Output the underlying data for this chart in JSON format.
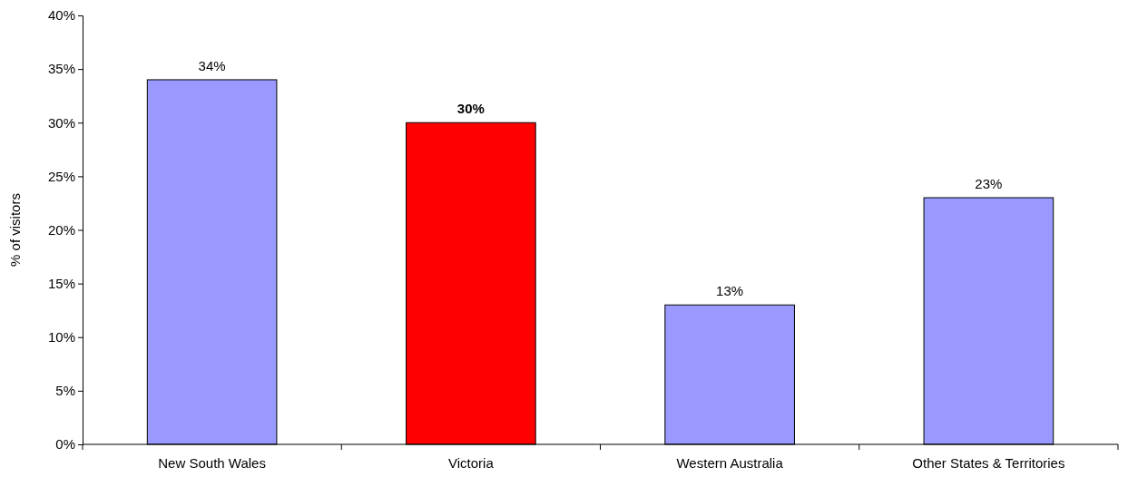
{
  "chart_data": {
    "type": "bar",
    "ylabel": "% of visitors",
    "categories": [
      "New South Wales",
      "Victoria",
      "Western Australia",
      "Other States & Territories"
    ],
    "values": [
      34,
      30,
      13,
      23
    ],
    "colors": [
      "#9999ff",
      "#ff0000",
      "#9999ff",
      "#9999ff"
    ],
    "value_labels": [
      "34%",
      "30%",
      "13%",
      "23%"
    ],
    "ylim": [
      0,
      40
    ],
    "yticks": [
      {
        "value": 0,
        "label": "0%"
      },
      {
        "value": 5,
        "label": "5%"
      },
      {
        "value": 10,
        "label": "10%"
      },
      {
        "value": 15,
        "label": "15%"
      },
      {
        "value": 20,
        "label": "20%"
      },
      {
        "value": 25,
        "label": "25%"
      },
      {
        "value": 30,
        "label": "30%"
      },
      {
        "value": 35,
        "label": "35%"
      },
      {
        "value": 40,
        "label": "40%"
      }
    ],
    "grid": false
  }
}
